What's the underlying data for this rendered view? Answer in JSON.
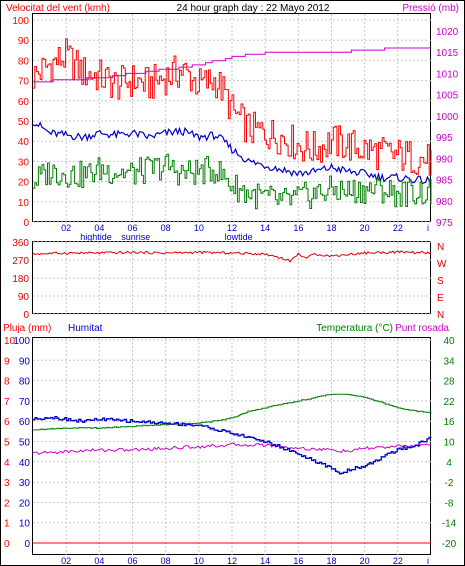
{
  "header": {
    "left_title": "Velocitat del vent (kmh)",
    "center_title": "24 hour graph day : 22 Mayo 2012",
    "right_title": "Pressió (mb)"
  },
  "lower_header": {
    "rain_label": "Pluja (mm)",
    "humidity_label": "Humitat",
    "temp_label": "Temperatura (°C)",
    "dew_label": "Punt rosada"
  },
  "colors": {
    "wind_gust": "#ff0000",
    "wind_avg": "#0000cc",
    "wind_low": "#008000",
    "pressure": "#cc00cc",
    "direction": "#dd0000",
    "temperature": "#008000",
    "dewpoint": "#cc00cc",
    "humidity": "#0000cc",
    "rain": "#ff0000",
    "grid": "#c8c8c8",
    "frame": "#000000"
  },
  "chart_data": [
    {
      "type": "line",
      "name": "wind-pressure",
      "x_ticks": [
        "02",
        "04",
        "06",
        "08",
        "10",
        "12",
        "14",
        "16",
        "18",
        "20",
        "22"
      ],
      "x_markers": [
        "hightide",
        "sunrise",
        "lowtide"
      ],
      "y_left_ticks": [
        "100",
        "90",
        "80",
        "70",
        "60",
        "50",
        "40",
        "30",
        "20",
        "10",
        "0"
      ],
      "y_left_range": [
        0,
        100
      ],
      "y_right_ticks": [
        "1020",
        "1015",
        "1010",
        "1005",
        "1000",
        "995",
        "990",
        "985",
        "980",
        "975"
      ],
      "y_right_range": [
        975,
        1024
      ],
      "x_range": [
        0,
        24
      ],
      "series": [
        {
          "key": "gust",
          "x": [
            0,
            1,
            2,
            3,
            4,
            5,
            6,
            7,
            8,
            9,
            10,
            11,
            11.5,
            12,
            13,
            14,
            15,
            16,
            17,
            18,
            19,
            20,
            21,
            22,
            23,
            24
          ],
          "values": [
            72,
            78,
            82,
            74,
            72,
            68,
            70,
            68,
            72,
            75,
            68,
            70,
            64,
            55,
            46,
            44,
            42,
            38,
            36,
            40,
            38,
            36,
            34,
            33,
            32,
            30
          ]
        },
        {
          "key": "avg",
          "x": [
            0,
            1,
            2,
            3,
            4,
            5,
            6,
            7,
            8,
            9,
            10,
            11,
            11.5,
            12,
            13,
            14,
            15,
            16,
            17,
            18,
            19,
            20,
            21,
            22,
            23,
            24
          ],
          "values": [
            50,
            44,
            43,
            42,
            44,
            43,
            44,
            42,
            44,
            45,
            42,
            43,
            40,
            36,
            30,
            28,
            26,
            24,
            25,
            27,
            25,
            24,
            22,
            22,
            21,
            20
          ]
        },
        {
          "key": "low",
          "x": [
            0,
            1,
            2,
            3,
            4,
            5,
            6,
            7,
            8,
            9,
            10,
            11,
            11.5,
            12,
            13,
            14,
            15,
            16,
            17,
            18,
            19,
            20,
            21,
            22,
            23,
            24
          ],
          "values": [
            20,
            25,
            24,
            23,
            26,
            25,
            24,
            26,
            28,
            24,
            25,
            26,
            22,
            18,
            14,
            12,
            10,
            12,
            14,
            16,
            15,
            16,
            16,
            14,
            15,
            14
          ]
        },
        {
          "key": "pressure",
          "x": [
            0,
            2,
            4,
            6,
            8,
            10,
            11,
            12,
            13,
            14,
            16,
            18,
            20,
            22,
            24
          ],
          "values": [
            1008,
            1008.5,
            1009,
            1010,
            1011,
            1012,
            1013,
            1014,
            1014.5,
            1014.8,
            1015,
            1015,
            1015.5,
            1016,
            1016.2
          ]
        }
      ]
    },
    {
      "type": "line",
      "name": "wind-direction",
      "y_ticks": [
        "360",
        "270",
        "180",
        "90",
        "0"
      ],
      "y_range": [
        0,
        360
      ],
      "compass": [
        "N",
        "W",
        "S",
        "E",
        "N"
      ],
      "x_range": [
        0,
        24
      ],
      "series": [
        {
          "key": "direction",
          "x": [
            0,
            2,
            4,
            6,
            8,
            10,
            12,
            14,
            15,
            15.5,
            16,
            16.5,
            17,
            18,
            20,
            22,
            24
          ],
          "values": [
            300,
            305,
            305,
            308,
            305,
            308,
            305,
            300,
            280,
            265,
            300,
            280,
            300,
            290,
            305,
            310,
            305
          ]
        }
      ]
    },
    {
      "type": "line",
      "name": "temp-humidity-rain",
      "y_rain_ticks": [
        "10",
        "9",
        "8",
        "7",
        "6",
        "5",
        "4",
        "3",
        "2",
        "1",
        "0"
      ],
      "y_hum_ticks": [
        "100",
        "90",
        "80",
        "70",
        "60",
        "50",
        "40",
        "30",
        "20",
        "10",
        "0"
      ],
      "y_left_range": [
        0,
        100
      ],
      "y_temp_ticks": [
        "40",
        "34",
        "28",
        "22",
        "16",
        "10",
        "4",
        "-2",
        "-8",
        "-14",
        "-20"
      ],
      "y_temp_range": [
        -20,
        40
      ],
      "x_range": [
        0,
        24
      ],
      "series": [
        {
          "key": "temperature",
          "x": [
            0,
            2,
            4,
            6,
            8,
            10,
            11,
            12,
            13,
            14,
            15,
            16,
            17,
            18,
            19,
            20,
            21,
            22,
            23,
            24
          ],
          "values": [
            13.5,
            14,
            14,
            14.5,
            15,
            15.5,
            16,
            17,
            19,
            20,
            21,
            22,
            23,
            24,
            24,
            23,
            21.5,
            20,
            19,
            18.5
          ]
        },
        {
          "key": "dewpoint",
          "x": [
            0,
            2,
            4,
            6,
            8,
            10,
            12,
            14,
            16,
            18,
            19,
            20,
            22,
            24
          ],
          "values": [
            6.5,
            7,
            7.5,
            7.5,
            8,
            8.5,
            9,
            9,
            8,
            7.5,
            7,
            8,
            8.5,
            9
          ]
        },
        {
          "key": "humidity",
          "x": [
            0,
            1,
            2,
            3,
            4,
            6,
            8,
            10,
            11,
            12,
            13,
            14,
            15,
            16,
            17,
            18,
            18.5,
            19,
            20,
            21,
            22,
            23,
            24
          ],
          "values": [
            61,
            62,
            61,
            60,
            61,
            60,
            59,
            58,
            56,
            54,
            52,
            50,
            47,
            44,
            40,
            37,
            34,
            36,
            38,
            42,
            46,
            48,
            52
          ]
        },
        {
          "key": "rain",
          "x": [
            0,
            24
          ],
          "values": [
            0,
            0
          ]
        }
      ]
    }
  ]
}
